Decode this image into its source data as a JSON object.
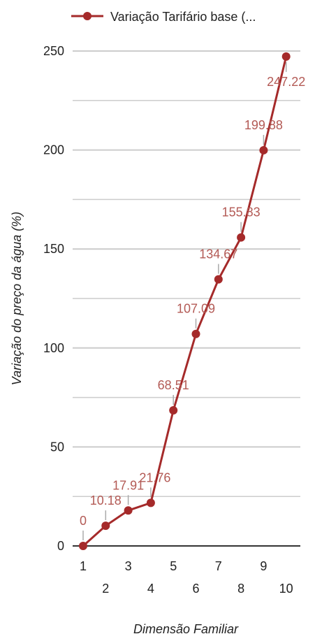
{
  "chart_data": {
    "type": "line",
    "legend": {
      "label": "Variação Tarifário base (...",
      "placement": "top"
    },
    "xlabel": "Dimensão Familiar",
    "ylabel": "Variação do preço da água (%)",
    "x": [
      1,
      2,
      3,
      4,
      5,
      6,
      7,
      8,
      9,
      10
    ],
    "series": [
      {
        "name": "Variação Tarifário base (...",
        "values": [
          0,
          10.18,
          17.91,
          21.76,
          68.51,
          107.09,
          134.67,
          155.83,
          199.88,
          247.22
        ],
        "labels": [
          "0",
          "10.18",
          "17.91",
          "21.76",
          "68.51",
          "107.09",
          "134.67",
          "155.83",
          "199.88",
          "247.22"
        ]
      }
    ],
    "ylim": [
      0,
      250
    ],
    "yticks": [
      0,
      50,
      100,
      150,
      200,
      250
    ],
    "grid": true,
    "colors": {
      "series": "#a52a2a",
      "label": "#b35a55",
      "grid": "#cccccc",
      "axis": "#333333"
    }
  }
}
